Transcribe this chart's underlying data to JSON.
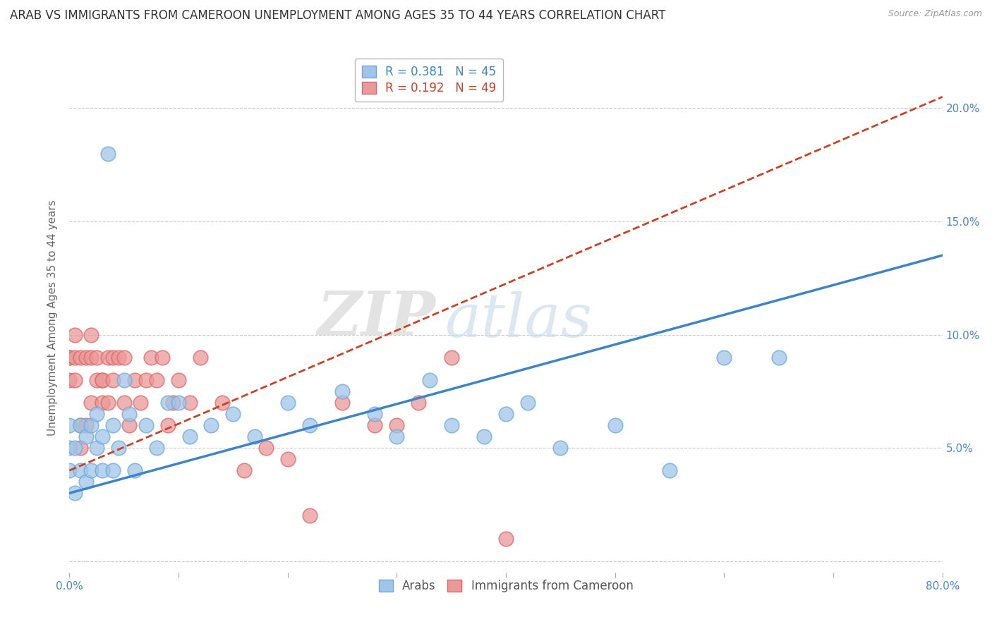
{
  "title": "ARAB VS IMMIGRANTS FROM CAMEROON UNEMPLOYMENT AMONG AGES 35 TO 44 YEARS CORRELATION CHART",
  "source": "Source: ZipAtlas.com",
  "ylabel": "Unemployment Among Ages 35 to 44 years",
  "xlim": [
    0,
    0.8
  ],
  "ylim": [
    -0.005,
    0.22
  ],
  "xticks": [
    0.0,
    0.1,
    0.2,
    0.3,
    0.4,
    0.5,
    0.6,
    0.7,
    0.8
  ],
  "xticklabels": [
    "0.0%",
    "",
    "",
    "",
    "",
    "",
    "",
    "",
    "80.0%"
  ],
  "ytick_positions": [
    0.0,
    0.05,
    0.1,
    0.15,
    0.2
  ],
  "yticklabels_right": [
    "",
    "5.0%",
    "10.0%",
    "15.0%",
    "20.0%"
  ],
  "watermark_zip": "ZIP",
  "watermark_atlas": "atlas",
  "arab_R": 0.381,
  "arab_N": 45,
  "cameroon_R": 0.192,
  "cameroon_N": 49,
  "arab_color": "#9fc5e8",
  "arab_edge_color": "#6fa8dc",
  "arab_line_color": "#3d85c8",
  "cameroon_color": "#ea9999",
  "cameroon_edge_color": "#e06666",
  "cameroon_line_color": "#cc4125",
  "background_color": "#ffffff",
  "grid_color": "#cccccc",
  "arab_scatter_x": [
    0.0,
    0.0,
    0.0,
    0.005,
    0.005,
    0.01,
    0.01,
    0.015,
    0.015,
    0.02,
    0.02,
    0.025,
    0.025,
    0.03,
    0.03,
    0.035,
    0.04,
    0.04,
    0.045,
    0.05,
    0.055,
    0.06,
    0.07,
    0.08,
    0.09,
    0.1,
    0.11,
    0.13,
    0.15,
    0.17,
    0.2,
    0.22,
    0.25,
    0.28,
    0.3,
    0.33,
    0.35,
    0.38,
    0.4,
    0.42,
    0.45,
    0.5,
    0.55,
    0.6,
    0.65
  ],
  "arab_scatter_y": [
    0.04,
    0.05,
    0.06,
    0.03,
    0.05,
    0.04,
    0.06,
    0.035,
    0.055,
    0.04,
    0.06,
    0.05,
    0.065,
    0.04,
    0.055,
    0.18,
    0.04,
    0.06,
    0.05,
    0.08,
    0.065,
    0.04,
    0.06,
    0.05,
    0.07,
    0.07,
    0.055,
    0.06,
    0.065,
    0.055,
    0.07,
    0.06,
    0.075,
    0.065,
    0.055,
    0.08,
    0.06,
    0.055,
    0.065,
    0.07,
    0.05,
    0.06,
    0.04,
    0.09,
    0.09
  ],
  "cameroon_scatter_x": [
    0.0,
    0.0,
    0.0,
    0.005,
    0.005,
    0.005,
    0.01,
    0.01,
    0.01,
    0.015,
    0.015,
    0.02,
    0.02,
    0.02,
    0.025,
    0.025,
    0.03,
    0.03,
    0.03,
    0.035,
    0.035,
    0.04,
    0.04,
    0.045,
    0.05,
    0.05,
    0.055,
    0.06,
    0.065,
    0.07,
    0.075,
    0.08,
    0.085,
    0.09,
    0.095,
    0.1,
    0.11,
    0.12,
    0.14,
    0.16,
    0.18,
    0.2,
    0.22,
    0.25,
    0.28,
    0.3,
    0.32,
    0.35,
    0.4
  ],
  "cameroon_scatter_y": [
    0.09,
    0.09,
    0.08,
    0.08,
    0.09,
    0.1,
    0.05,
    0.06,
    0.09,
    0.06,
    0.09,
    0.07,
    0.09,
    0.1,
    0.08,
    0.09,
    0.07,
    0.08,
    0.08,
    0.07,
    0.09,
    0.08,
    0.09,
    0.09,
    0.07,
    0.09,
    0.06,
    0.08,
    0.07,
    0.08,
    0.09,
    0.08,
    0.09,
    0.06,
    0.07,
    0.08,
    0.07,
    0.09,
    0.07,
    0.04,
    0.05,
    0.045,
    0.02,
    0.07,
    0.06,
    0.06,
    0.07,
    0.09,
    0.01
  ],
  "title_fontsize": 12,
  "axis_label_fontsize": 11,
  "tick_fontsize": 11,
  "legend_fontsize": 12,
  "arab_trend_x0": 0.0,
  "arab_trend_y0": 0.03,
  "arab_trend_x1": 0.8,
  "arab_trend_y1": 0.135,
  "cam_trend_x0": 0.0,
  "cam_trend_y0": 0.04,
  "cam_trend_x1": 0.8,
  "cam_trend_y1": 0.205
}
